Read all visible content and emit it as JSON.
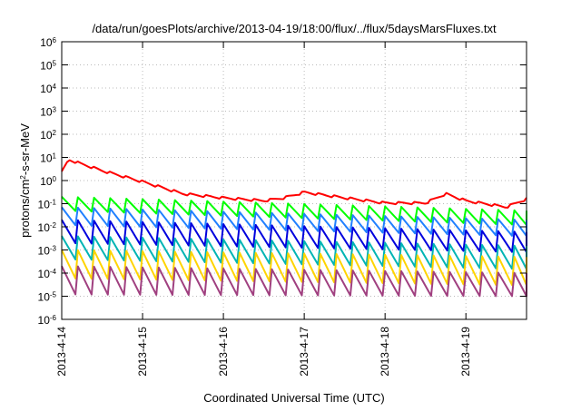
{
  "chart_data": {
    "type": "line",
    "title": "/data/run/goesPlots/archive/2013-04-19/18:00/flux/../flux/5daysMarsFluxes.txt",
    "xlabel": "Coordinated Universal Time (UTC)",
    "ylabel_parts": {
      "pre": "protons/cm",
      "sup": "2",
      "post": "-s-sr-MeV"
    },
    "x_scale": "time",
    "x_range": [
      "2013-04-14",
      "2013-04-19T18:00"
    ],
    "x_ticks": [
      "2013-4-14",
      "2013-4-15",
      "2013-4-16",
      "2013-4-17",
      "2013-4-18",
      "2013-4-19"
    ],
    "y_scale": "log",
    "y_range": [
      1e-06,
      1000000.0
    ],
    "y_ticks": [
      {
        "base": "10",
        "exp": "-6"
      },
      {
        "base": "10",
        "exp": "-5"
      },
      {
        "base": "10",
        "exp": "-4"
      },
      {
        "base": "10",
        "exp": "-3"
      },
      {
        "base": "10",
        "exp": "-2"
      },
      {
        "base": "10",
        "exp": "-1"
      },
      {
        "base": "10",
        "exp": "0"
      },
      {
        "base": "10",
        "exp": "1"
      },
      {
        "base": "10",
        "exp": "2"
      },
      {
        "base": "10",
        "exp": "3"
      },
      {
        "base": "10",
        "exp": "4"
      },
      {
        "base": "10",
        "exp": "5"
      },
      {
        "base": "10",
        "exp": "6"
      }
    ],
    "grid": true,
    "legend": "none",
    "series_style": "sawtooth",
    "sawtooth_periods_per_day": 5,
    "series": [
      {
        "color": "#ff0000",
        "band": "top",
        "trend_x": [
          "2013-04-14T00:00",
          "2013-04-14T02:00",
          "2013-04-14T12:00",
          "2013-04-15T00:00",
          "2013-04-15T12:00",
          "2013-04-16T00:00",
          "2013-04-16T12:00",
          "2013-04-16T18:00",
          "2013-04-17T00:00",
          "2013-04-17T12:00",
          "2013-04-18T00:00",
          "2013-04-18T12:00",
          "2013-04-18T18:00",
          "2013-04-19T00:00",
          "2013-04-19T12:00",
          "2013-04-19T18:00"
        ],
        "trend_y": [
          2.5,
          9,
          3,
          1,
          0.3,
          0.2,
          0.15,
          0.2,
          0.35,
          0.2,
          0.12,
          0.12,
          0.3,
          0.15,
          0.08,
          0.18
        ],
        "ripple_low": 0.75
      },
      {
        "color": "#00ff00",
        "band": "sawtooth",
        "trend_x": [
          "2013-04-14T00:00",
          "2013-04-19T18:00"
        ],
        "trend_y": [
          0.2,
          0.05
        ],
        "trough_y": [
          0.05,
          0.012
        ]
      },
      {
        "color": "#2080ff",
        "band": "sawtooth",
        "trend_x": [
          "2013-04-14T00:00",
          "2013-04-19T18:00"
        ],
        "trend_y": [
          0.07,
          0.02
        ],
        "trough_y": [
          0.012,
          0.004
        ]
      },
      {
        "color": "#0000dd",
        "band": "sawtooth",
        "trend_x": [
          "2013-04-14T00:00",
          "2013-04-19T18:00"
        ],
        "trend_y": [
          0.02,
          0.006
        ],
        "trough_y": [
          0.002,
          0.0008
        ]
      },
      {
        "color": "#00b4b4",
        "band": "sawtooth",
        "trend_x": [
          "2013-04-14T00:00",
          "2013-04-19T18:00"
        ],
        "trend_y": [
          0.004,
          0.0015
        ],
        "trough_y": [
          0.0004,
          0.00015
        ]
      },
      {
        "color": "#ffd400",
        "band": "sawtooth",
        "trend_x": [
          "2013-04-14T00:00",
          "2013-04-19T18:00"
        ],
        "trend_y": [
          0.001,
          0.0005
        ],
        "trough_y": [
          6e-05,
          3e-05
        ]
      },
      {
        "color": "#a04080",
        "band": "sawtooth",
        "trend_x": [
          "2013-04-14T00:00",
          "2013-04-19T18:00"
        ],
        "trend_y": [
          0.0002,
          0.0001
        ],
        "trough_y": [
          1.2e-05,
          1e-05
        ]
      }
    ]
  }
}
